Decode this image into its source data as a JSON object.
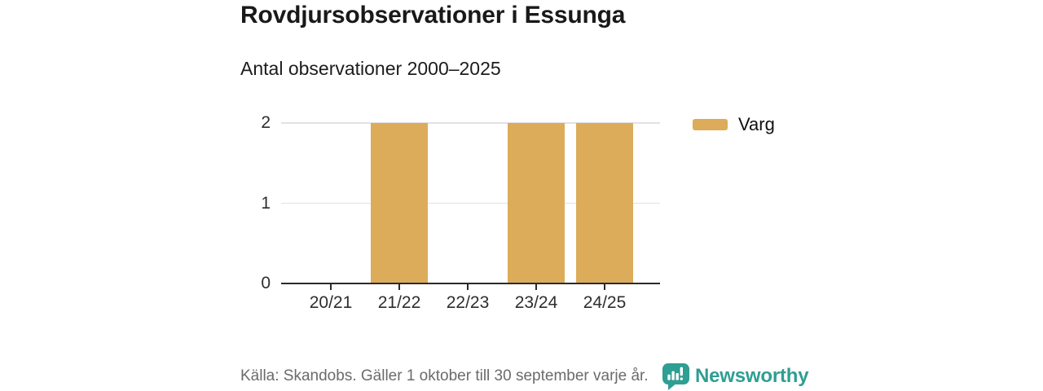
{
  "chart_data": {
    "type": "bar",
    "title": "Rovdjursobservationer i Essunga",
    "subtitle": "Antal observationer 2000–2025",
    "categories": [
      "20/21",
      "21/22",
      "22/23",
      "23/24",
      "24/25"
    ],
    "series": [
      {
        "name": "Varg",
        "values": [
          0,
          2,
          0,
          2,
          2
        ]
      }
    ],
    "xlabel": "",
    "ylabel": "",
    "ylim": [
      0,
      2
    ],
    "yticks": [
      0,
      1,
      2
    ],
    "grid": true,
    "legend_position": "right",
    "bar_color": "#DCAC5A"
  },
  "footer": {
    "source": "Källa: Skandobs. Gäller 1 oktober till 30 september varje år.",
    "brand": "Newsworthy",
    "brand_color": "#2F9E93"
  }
}
